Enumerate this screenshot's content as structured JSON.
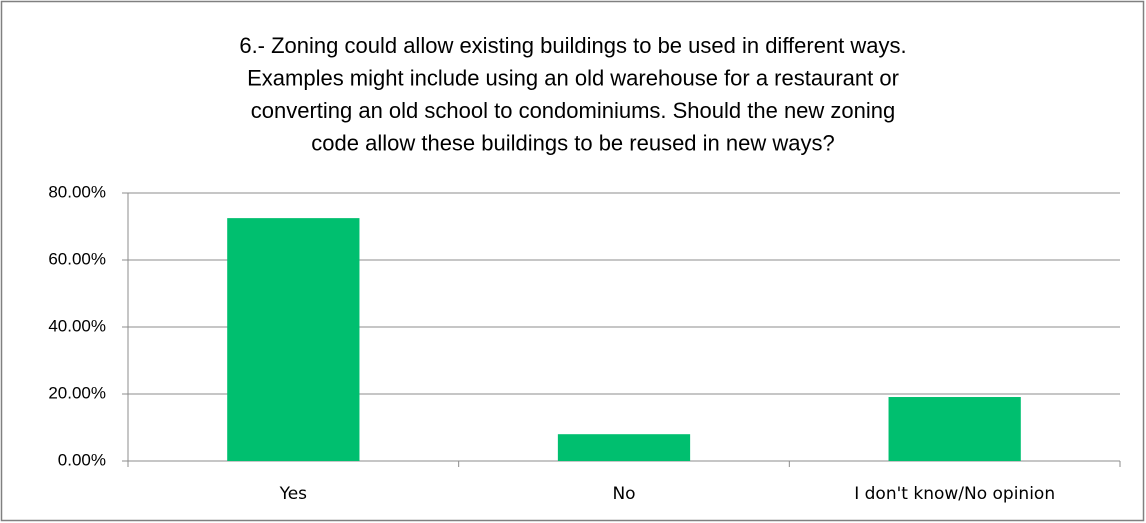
{
  "chart_data": {
    "type": "bar",
    "title": [
      "6.- Zoning could allow existing buildings to be used in different ways.",
      "Examples might include using an old warehouse for a restaurant or",
      "converting an old school to condominiums. Should the new zoning",
      "code allow these buildings to be reused in new ways?"
    ],
    "categories": [
      "Yes",
      "No",
      "I don't know/No opinion"
    ],
    "values": [
      72.5,
      8,
      19.1
    ],
    "color": "#00bf6f",
    "ylim": [
      0,
      80
    ],
    "yticks": [
      {
        "value": 0,
        "label": "0.00%"
      },
      {
        "value": 20,
        "label": "20.00%"
      },
      {
        "value": 40,
        "label": "40.00%"
      },
      {
        "value": 60,
        "label": "60.00%"
      },
      {
        "value": 80,
        "label": "80.00%"
      }
    ],
    "grid": true
  }
}
